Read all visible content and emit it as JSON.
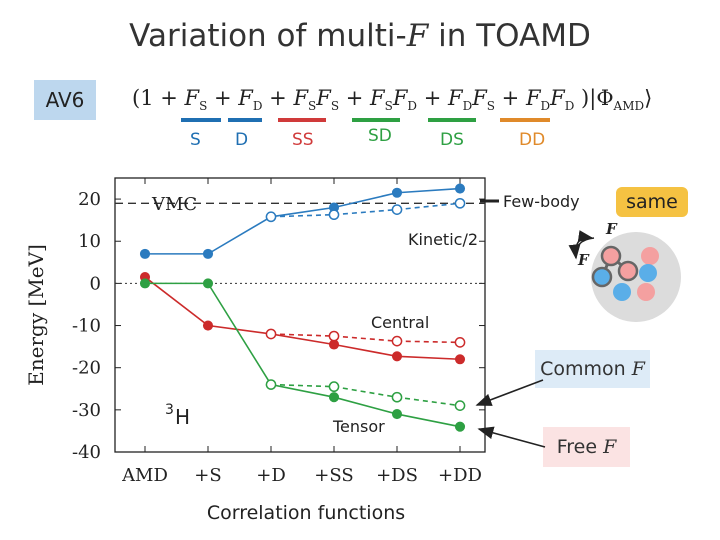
{
  "title": {
    "prefix": "Variation of multi-",
    "symbol": "F",
    "suffix": " in TOAMD"
  },
  "interaction_badge": "AV6",
  "formula": {
    "open": "(1 +",
    "terms": [
      {
        "text": "F",
        "sub": "S",
        "op": "+"
      },
      {
        "text": "F",
        "sub": "D",
        "op": "+"
      },
      {
        "text": "F",
        "sub": "S",
        "text2": "F",
        "sub2": "S",
        "op": "+"
      },
      {
        "text": "F",
        "sub": "S",
        "text2": "F",
        "sub2": "D",
        "op": "+"
      },
      {
        "text": "F",
        "sub": "D",
        "text2": "F",
        "sub2": "S",
        "op": "+"
      },
      {
        "text": "F",
        "sub": "D",
        "text2": "F",
        "sub2": "D",
        "op": ""
      }
    ],
    "close": ")|Φ",
    "close_sub": "AMD",
    "close_end": "⟩"
  },
  "term_labels": [
    {
      "label": "S",
      "color": "#1f6fb2"
    },
    {
      "label": "D",
      "color": "#1f6fb2"
    },
    {
      "label": "SS",
      "color": "#d03a3a"
    },
    {
      "label": "SD",
      "color": "#2ea043"
    },
    {
      "label": "DS",
      "color": "#2ea043"
    },
    {
      "label": "DD",
      "color": "#e08a2a"
    }
  ],
  "side": {
    "same_label": "same",
    "F_symbol": "F",
    "common_label": "Common ",
    "common_symbol": "F",
    "free_label": "Free ",
    "free_symbol": "F"
  },
  "chart_data": {
    "type": "line",
    "title": "",
    "xlabel": "Correlation functions",
    "ylabel": "Energy [MeV]",
    "categories": [
      "AMD",
      "+S",
      "+D",
      "+SS",
      "+DS",
      "+DD"
    ],
    "ylim": [
      -40,
      25
    ],
    "yticks": [
      20,
      10,
      0,
      -10,
      -20,
      -30,
      -40
    ],
    "ytick_labels": [
      "20",
      "10",
      "0",
      "-10",
      "-20",
      "-30",
      "-40"
    ],
    "vmc_value": 19,
    "vmc_label": "VMC",
    "nucleus_label_mass": "3",
    "nucleus_label_symbol": "H",
    "series": [
      {
        "name": "Few-body",
        "group": "kinetic",
        "style": "solid",
        "color": "#2b7bbf",
        "values": [
          7,
          7,
          15.8,
          18,
          21.5,
          22.5
        ]
      },
      {
        "name": "Kinetic/2",
        "group": "kinetic",
        "style": "dashed",
        "color": "#2b7bbf",
        "values": [
          null,
          null,
          15.8,
          16.3,
          17.5,
          19
        ]
      },
      {
        "name": "Central",
        "group": "central",
        "style": "solid",
        "color": "#cc2b2b",
        "values": [
          1.5,
          -10,
          -12,
          -14.5,
          -17.3,
          -18
        ]
      },
      {
        "name": "Central (common F)",
        "group": "central",
        "style": "dashed",
        "color": "#cc2b2b",
        "values": [
          null,
          null,
          -12,
          -12.5,
          -13.7,
          -14
        ]
      },
      {
        "name": "Tensor",
        "group": "tensor",
        "style": "solid",
        "color": "#2ea043",
        "values": [
          0,
          0,
          -24,
          -27,
          -31,
          -34
        ]
      },
      {
        "name": "Tensor (common F)",
        "group": "tensor",
        "style": "dashed",
        "color": "#2ea043",
        "values": [
          null,
          null,
          -24,
          -24.5,
          -27,
          -29
        ]
      }
    ],
    "annotations": {
      "few_body": "Few-body",
      "kinetic": "Kinetic/2",
      "central": "Central",
      "tensor": "Tensor"
    }
  }
}
